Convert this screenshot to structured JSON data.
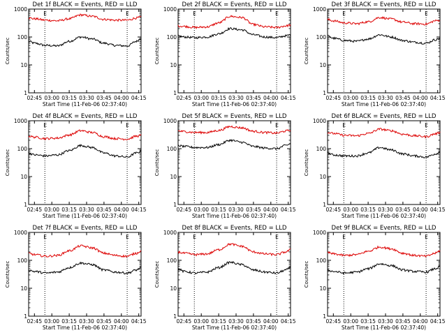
{
  "colors": {
    "events": "#000000",
    "lld": "#dd0000",
    "markers": "#000000"
  },
  "shared": {
    "xticks": [
      "02:45",
      "03:00",
      "03:15",
      "03:30",
      "03:45",
      "04:00",
      "04:15"
    ],
    "xtick_minutes": [
      0,
      15,
      30,
      45,
      60,
      75,
      90
    ],
    "yticks": [
      "1",
      "10",
      "100",
      "1000"
    ],
    "ytick_values": [
      1,
      10,
      100,
      1000
    ],
    "ylim": [
      1,
      1000
    ],
    "yscale": "log",
    "ylabel": "Counts/sec",
    "xlabel": "Start Time (11-Feb-06 02:37:40)",
    "xlim_minutes": [
      -5,
      92
    ],
    "marker_letter": "E",
    "markers_minutes": [
      9,
      80
    ]
  },
  "chart_data": [
    {
      "type": "line",
      "title": "Det 1f BLACK = Events, RED = LLD",
      "series": [
        {
          "name": "Events",
          "x": [
            -5,
            0,
            10,
            20,
            30,
            40,
            50,
            60,
            70,
            80,
            88,
            92
          ],
          "values": [
            70,
            60,
            50,
            48,
            70,
            100,
            85,
            60,
            50,
            48,
            70,
            90
          ]
        },
        {
          "name": "LLD",
          "x": [
            -5,
            0,
            10,
            20,
            30,
            40,
            50,
            60,
            70,
            80,
            88,
            92
          ],
          "values": [
            480,
            450,
            400,
            380,
            450,
            620,
            550,
            430,
            400,
            400,
            480,
            520
          ]
        }
      ]
    },
    {
      "type": "line",
      "title": "Det 2f BLACK = Events, RED = LLD",
      "series": [
        {
          "name": "Events",
          "x": [
            -5,
            0,
            10,
            20,
            30,
            40,
            50,
            60,
            70,
            80,
            88,
            92
          ],
          "values": [
            110,
            100,
            95,
            100,
            130,
            200,
            180,
            120,
            100,
            95,
            110,
            120
          ]
        },
        {
          "name": "LLD",
          "x": [
            -5,
            0,
            10,
            20,
            30,
            40,
            50,
            60,
            70,
            80,
            88,
            92
          ],
          "values": [
            250,
            240,
            220,
            230,
            320,
            550,
            500,
            280,
            230,
            220,
            250,
            270
          ]
        }
      ]
    },
    {
      "type": "line",
      "title": "Det 3f BLACK = Events, RED = LLD",
      "series": [
        {
          "name": "Events",
          "x": [
            -5,
            0,
            10,
            20,
            30,
            40,
            50,
            60,
            70,
            80,
            88,
            92
          ],
          "values": [
            110,
            90,
            75,
            70,
            85,
            120,
            100,
            75,
            65,
            60,
            80,
            90
          ]
        },
        {
          "name": "LLD",
          "x": [
            -5,
            0,
            10,
            20,
            30,
            40,
            50,
            60,
            70,
            80,
            88,
            92
          ],
          "values": [
            420,
            380,
            320,
            300,
            350,
            500,
            440,
            340,
            300,
            290,
            380,
            400
          ]
        }
      ]
    },
    {
      "type": "line",
      "title": "Det 4f BLACK = Events, RED = LLD",
      "series": [
        {
          "name": "Events",
          "x": [
            -5,
            0,
            10,
            20,
            30,
            40,
            50,
            60,
            70,
            80,
            88,
            92
          ],
          "values": [
            70,
            60,
            55,
            60,
            85,
            130,
            110,
            70,
            55,
            50,
            70,
            80
          ]
        },
        {
          "name": "LLD",
          "x": [
            -5,
            0,
            10,
            20,
            30,
            40,
            50,
            60,
            70,
            80,
            88,
            92
          ],
          "values": [
            280,
            260,
            230,
            240,
            310,
            440,
            380,
            270,
            230,
            220,
            280,
            300
          ]
        }
      ]
    },
    {
      "type": "line",
      "title": "Det 5f BLACK = Events, RED = LLD",
      "series": [
        {
          "name": "Events",
          "x": [
            -5,
            0,
            10,
            20,
            30,
            40,
            50,
            60,
            70,
            80,
            88,
            92
          ],
          "values": [
            130,
            120,
            110,
            110,
            140,
            200,
            170,
            120,
            105,
            100,
            130,
            150
          ]
        },
        {
          "name": "LLD",
          "x": [
            -5,
            0,
            10,
            20,
            30,
            40,
            50,
            60,
            70,
            80,
            88,
            92
          ],
          "values": [
            430,
            410,
            380,
            380,
            450,
            620,
            560,
            420,
            380,
            360,
            430,
            460
          ]
        }
      ]
    },
    {
      "type": "line",
      "title": "Det 6f BLACK = Events, RED = LLD",
      "series": [
        {
          "name": "Events",
          "x": [
            -5,
            0,
            10,
            20,
            30,
            40,
            50,
            60,
            70,
            80,
            88,
            92
          ],
          "values": [
            70,
            60,
            55,
            55,
            70,
            110,
            90,
            65,
            55,
            50,
            65,
            75
          ]
        },
        {
          "name": "LLD",
          "x": [
            -5,
            0,
            10,
            20,
            30,
            40,
            50,
            60,
            70,
            80,
            88,
            92
          ],
          "values": [
            380,
            350,
            300,
            290,
            350,
            500,
            440,
            330,
            290,
            270,
            340,
            380
          ]
        }
      ]
    },
    {
      "type": "line",
      "title": "Det 7f BLACK = Events, RED = LLD",
      "series": [
        {
          "name": "Events",
          "x": [
            -5,
            0,
            10,
            20,
            30,
            40,
            50,
            60,
            70,
            80,
            88,
            92
          ],
          "values": [
            45,
            40,
            35,
            38,
            55,
            80,
            70,
            45,
            38,
            35,
            45,
            55
          ]
        },
        {
          "name": "LLD",
          "x": [
            -5,
            0,
            10,
            20,
            30,
            40,
            50,
            60,
            70,
            80,
            88,
            92
          ],
          "values": [
            180,
            160,
            140,
            150,
            220,
            330,
            280,
            180,
            150,
            140,
            180,
            220
          ]
        }
      ]
    },
    {
      "type": "line",
      "title": "Det 8f BLACK = Events, RED = LLD",
      "series": [
        {
          "name": "Events",
          "x": [
            -5,
            0,
            10,
            20,
            30,
            40,
            50,
            60,
            70,
            80,
            88,
            92
          ],
          "values": [
            50,
            40,
            35,
            38,
            55,
            85,
            70,
            45,
            38,
            35,
            45,
            55
          ]
        },
        {
          "name": "LLD",
          "x": [
            -5,
            0,
            10,
            20,
            30,
            40,
            50,
            60,
            70,
            80,
            88,
            92
          ],
          "values": [
            200,
            180,
            160,
            170,
            240,
            380,
            320,
            200,
            170,
            160,
            200,
            240
          ]
        }
      ]
    },
    {
      "type": "line",
      "title": "Det 9f BLACK = Events, RED = LLD",
      "series": [
        {
          "name": "Events",
          "x": [
            -5,
            0,
            10,
            20,
            30,
            40,
            50,
            60,
            70,
            80,
            88,
            92
          ],
          "values": [
            45,
            40,
            35,
            38,
            50,
            75,
            65,
            45,
            40,
            38,
            50,
            60
          ]
        },
        {
          "name": "LLD",
          "x": [
            -5,
            0,
            10,
            20,
            30,
            40,
            50,
            60,
            70,
            80,
            88,
            92
          ],
          "values": [
            190,
            170,
            150,
            160,
            210,
            300,
            260,
            180,
            150,
            140,
            180,
            220
          ]
        }
      ]
    }
  ]
}
